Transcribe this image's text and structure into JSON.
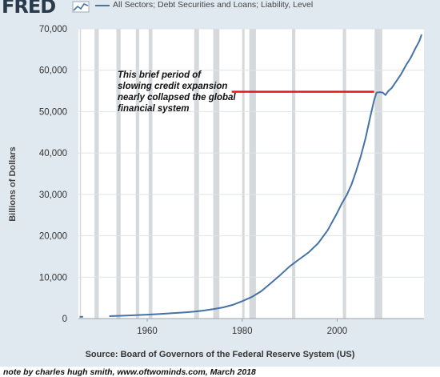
{
  "header": {
    "logo": "FRED",
    "legend_label": "All Sectors; Debt Securities and Loans; Liability, Level"
  },
  "source_text": "Source: Board of Governors of the Federal Reserve System (US)",
  "note_text": "note by charles hugh smith, www.oftwominds.com, March 2018",
  "annotation": {
    "text": "This brief period of slowing credit expansion nearly collapsed the global financial system",
    "line_color": "#e8161e",
    "y_value": 54800,
    "x_start": 1977.8,
    "x_end": 2007.8
  },
  "chart_data": {
    "type": "line",
    "title": "",
    "xlabel": "",
    "ylabel": "Billions of Dollars",
    "xlim": [
      1945.5,
      2018.3
    ],
    "ylim": [
      0,
      70000
    ],
    "x_ticks": [
      1960,
      1980,
      2000
    ],
    "x_tick_labels": [
      "1960",
      "1980",
      "2000"
    ],
    "y_ticks": [
      0,
      10000,
      20000,
      30000,
      40000,
      50000,
      60000,
      70000
    ],
    "y_tick_labels": [
      "0",
      "10,000",
      "20,000",
      "30,000",
      "40,000",
      "50,000",
      "60,000",
      "70,000"
    ],
    "grid": "horizontal",
    "series_color": "#4572a7",
    "recession_color": "#d6d9dc",
    "recessions": [
      [
        1945.8,
        1946.0
      ],
      [
        1948.9,
        1949.8
      ],
      [
        1953.5,
        1954.4
      ],
      [
        1957.6,
        1958.3
      ],
      [
        1960.3,
        1961.1
      ],
      [
        1969.9,
        1970.9
      ],
      [
        1973.9,
        1975.2
      ],
      [
        1980.0,
        1980.5
      ],
      [
        1981.5,
        1982.9
      ],
      [
        1990.5,
        1991.2
      ],
      [
        2001.2,
        2001.9
      ],
      [
        2007.9,
        2009.5
      ]
    ],
    "series": [
      {
        "name": "All Sectors; Debt Securities and Loans; Liability, Level",
        "points": [
          [
            1945.75,
            400
          ],
          [
            1946.5,
            420
          ],
          [
            1952.0,
            580
          ],
          [
            1955,
            700
          ],
          [
            1958,
            850
          ],
          [
            1960,
            950
          ],
          [
            1962,
            1070
          ],
          [
            1964,
            1200
          ],
          [
            1966,
            1350
          ],
          [
            1968,
            1500
          ],
          [
            1970,
            1680
          ],
          [
            1972,
            1950
          ],
          [
            1974,
            2300
          ],
          [
            1976,
            2700
          ],
          [
            1978,
            3300
          ],
          [
            1980,
            4200
          ],
          [
            1982,
            5200
          ],
          [
            1984,
            6600
          ],
          [
            1986,
            8500
          ],
          [
            1988,
            10500
          ],
          [
            1990,
            12600
          ],
          [
            1992,
            14300
          ],
          [
            1994,
            16000
          ],
          [
            1996,
            18200
          ],
          [
            1998,
            21300
          ],
          [
            2000,
            25500
          ],
          [
            2001,
            27800
          ],
          [
            2002,
            29800
          ],
          [
            2003,
            32300
          ],
          [
            2004,
            35600
          ],
          [
            2005,
            39300
          ],
          [
            2006,
            43600
          ],
          [
            2007,
            48800
          ],
          [
            2007.8,
            52800
          ],
          [
            2008.3,
            54600
          ],
          [
            2009.0,
            54700
          ],
          [
            2009.6,
            54600
          ],
          [
            2010.2,
            54000
          ],
          [
            2010.8,
            55000
          ],
          [
            2011.5,
            55700
          ],
          [
            2012.5,
            57400
          ],
          [
            2013.5,
            59100
          ],
          [
            2014.5,
            61200
          ],
          [
            2015.5,
            63000
          ],
          [
            2016.5,
            65300
          ],
          [
            2017.3,
            67000
          ],
          [
            2017.8,
            68600
          ]
        ]
      }
    ]
  }
}
